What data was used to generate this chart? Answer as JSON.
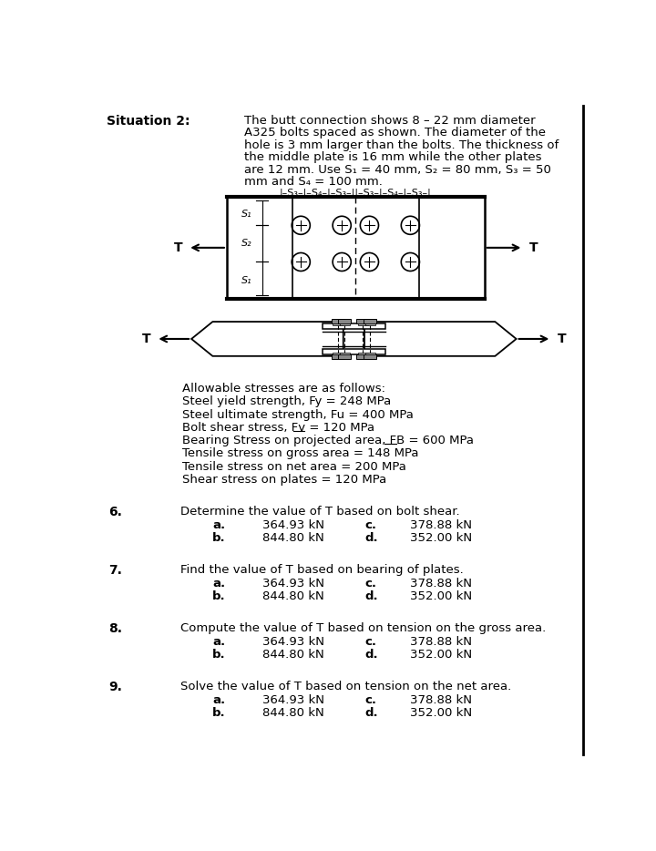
{
  "bg_color": "#ffffff",
  "situation_label": "Situation 2:",
  "description_lines": [
    "The butt connection shows 8 – 22 mm diameter",
    "A325 bolts spaced as shown. The diameter of the",
    "hole is 3 mm larger than the bolts. The thickness of",
    "the middle plate is 16 mm while the other plates",
    "are 12 mm. Use S₁ = 40 mm, S₂ = 80 mm, S₃ = 50",
    "mm and S₄ = 100 mm."
  ],
  "dim_text": "|–S₃–|–S₄–|–S₃–||–S₃–|–S₄–|–S₃–|",
  "allow_lines": [
    "Allowable stresses are as follows:",
    "Steel yield strength, Fʸ = 248 MPa",
    "Steel ultimate strength, Fᵘ = 400 MPa",
    "Bolt shear stress, Fᵥ = 120 MPa",
    "Bearing Stress on projected area, Fᴽ = 600 MPa",
    "Tensile stress on gross area = 148 MPa",
    "Tensile stress on net area = 200 MPa",
    "Shear stress on plates = 120 MPa"
  ],
  "questions": [
    {
      "num": "6.",
      "text": "Determine the value of T based on bolt shear.",
      "a": "364.93 kN",
      "b": "844.80 kN",
      "c": "378.88 kN",
      "d": "352.00 kN"
    },
    {
      "num": "7.",
      "text": "Find the value of T based on bearing of plates.",
      "a": "364.93 kN",
      "b": "844.80 kN",
      "c": "378.88 kN",
      "d": "352.00 kN"
    },
    {
      "num": "8.",
      "text": "Compute the value of T based on tension on the gross area.",
      "a": "364.93 kN",
      "b": "844.80 kN",
      "c": "378.88 kN",
      "d": "352.00 kN"
    },
    {
      "num": "9.",
      "text": "Solve the value of T based on tension on the net area.",
      "a": "364.93 kN",
      "b": "844.80 kN",
      "c": "378.88 kN",
      "d": "352.00 kN"
    }
  ]
}
